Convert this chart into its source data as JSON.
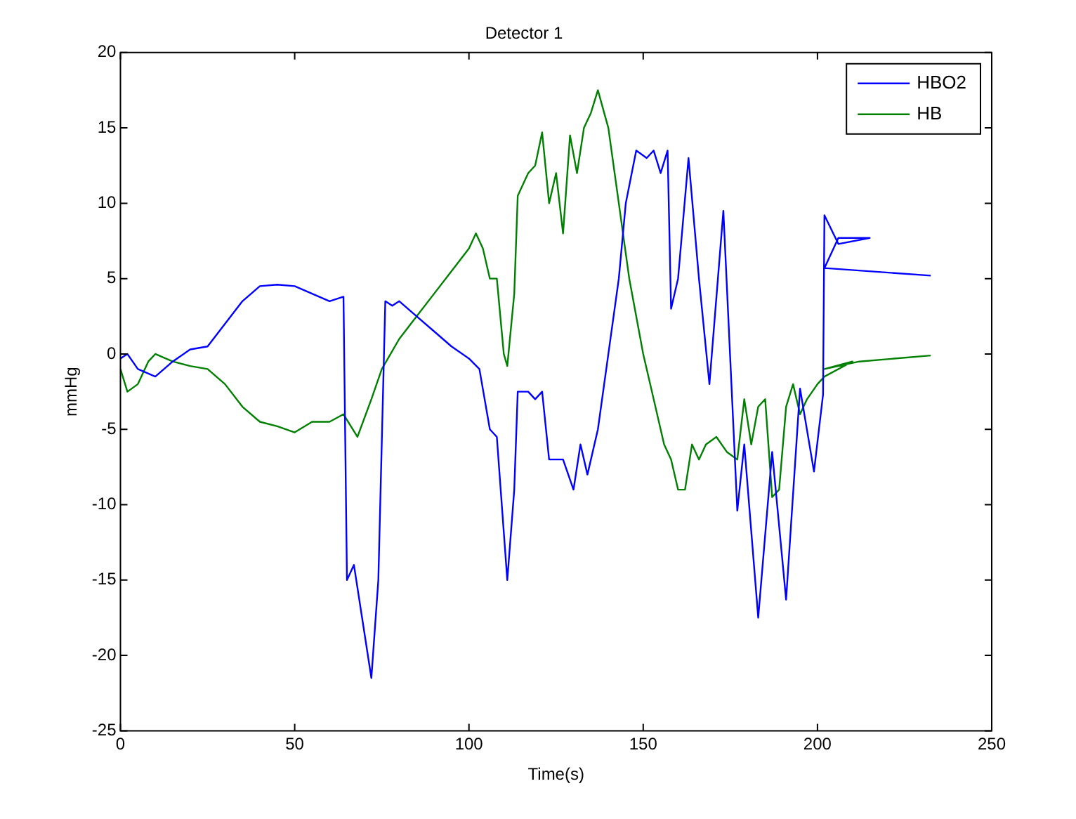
{
  "chart_data": {
    "type": "line",
    "title": "Detector 1",
    "xlabel": "Time(s)",
    "ylabel": "mmHg",
    "xlim": [
      0,
      250
    ],
    "ylim": [
      -25,
      20
    ],
    "xticks": [
      0,
      50,
      100,
      150,
      200,
      250
    ],
    "yticks": [
      -25,
      -20,
      -15,
      -10,
      -5,
      0,
      5,
      10,
      15,
      20
    ],
    "grid": false,
    "legend": "top right",
    "marker": "none",
    "line_style": "solid",
    "series": [
      {
        "name": "HBO2",
        "color": "#0000ff",
        "x": [
          0,
          2,
          5,
          10,
          15,
          20,
          25,
          30,
          35,
          40,
          45,
          50,
          55,
          60,
          64,
          65,
          67,
          69,
          72,
          74,
          76,
          78,
          80,
          85,
          90,
          95,
          100,
          103,
          106,
          108,
          111,
          113,
          114,
          117,
          119,
          121,
          123,
          127,
          130,
          132,
          134,
          137,
          140,
          143,
          145,
          148,
          151,
          153,
          155,
          157,
          158,
          160,
          163,
          166,
          169,
          173,
          177,
          179,
          183,
          187,
          191,
          195,
          199,
          201.6,
          202,
          206,
          215,
          206,
          202,
          232.5
        ],
        "values": [
          -0.3,
          0,
          -1,
          -1.5,
          -0.5,
          0.3,
          0.5,
          2,
          3.5,
          4.5,
          4.6,
          4.5,
          4,
          3.5,
          3.8,
          -15,
          -14,
          -17,
          -21.5,
          -15,
          3.5,
          3.2,
          3.5,
          2.5,
          1.5,
          0.5,
          -0.3,
          -1,
          -5,
          -5.5,
          -15,
          -9,
          -2.5,
          -2.5,
          -3,
          -2.5,
          -7,
          -7,
          -9,
          -6,
          -8,
          -5,
          0,
          5,
          10,
          13.5,
          13,
          13.5,
          12,
          13.5,
          3,
          5,
          13,
          5,
          -2,
          9.5,
          -10.4,
          -6,
          -17.5,
          -6.5,
          -16.3,
          -2.3,
          -7.8,
          -2.7,
          9.2,
          7.3,
          7.7,
          7.7,
          5.7,
          5.2
        ]
      },
      {
        "name": "HB",
        "color": "#008000",
        "x": [
          0,
          2,
          5,
          8,
          10,
          15,
          20,
          25,
          30,
          35,
          40,
          45,
          50,
          55,
          60,
          64,
          68,
          72,
          75,
          80,
          85,
          90,
          95,
          100,
          102,
          104,
          106,
          108,
          110,
          111,
          113,
          114,
          117,
          119,
          121,
          123,
          125,
          127,
          129,
          131,
          133,
          135,
          137,
          140,
          143,
          146,
          150,
          153,
          156,
          158,
          160,
          162,
          164,
          166,
          168,
          171,
          174,
          177,
          179,
          181,
          183,
          185,
          187,
          189,
          191,
          193,
          195,
          197,
          200,
          202,
          210,
          202,
          212,
          232.5
        ],
        "values": [
          -1,
          -2.5,
          -2,
          -0.5,
          0,
          -0.5,
          -0.8,
          -1,
          -2,
          -3.5,
          -4.5,
          -4.8,
          -5.2,
          -4.5,
          -4.5,
          -4,
          -5.5,
          -3,
          -1,
          1,
          2.5,
          4,
          5.5,
          7,
          8,
          7,
          5,
          5,
          0,
          -0.8,
          4,
          10.5,
          12,
          12.5,
          14.7,
          10,
          12,
          8,
          14.5,
          12,
          15,
          16,
          17.5,
          15,
          10,
          5,
          0,
          -3,
          -6,
          -7,
          -9,
          -9,
          -6,
          -7,
          -6,
          -5.5,
          -6.5,
          -7,
          -3,
          -6,
          -3.5,
          -3,
          -9.5,
          -9,
          -3.5,
          -2,
          -4,
          -3,
          -2,
          -1.5,
          -0.5,
          -1,
          -0.5,
          -0.1
        ]
      }
    ]
  }
}
